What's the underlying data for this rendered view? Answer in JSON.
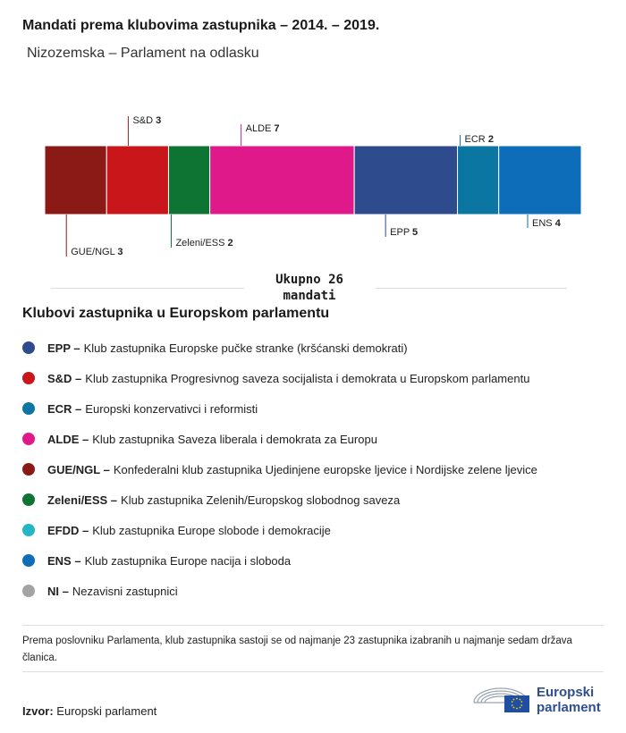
{
  "title": "Mandati prema klubovima zastupnika – 2014. – 2019.",
  "subtitle": "Nizozemska – Parlament na odlasku",
  "chart_data": {
    "type": "bar",
    "orientation": "stacked-horizontal",
    "categories": [
      "GUE/NGL",
      "S&D",
      "Zeleni/ESS",
      "ALDE",
      "EPP",
      "ECR",
      "ENS"
    ],
    "values": [
      3,
      3,
      2,
      7,
      5,
      2,
      4
    ],
    "colors": [
      "#8b1a16",
      "#c8161b",
      "#0d7434",
      "#e0198a",
      "#2e4b8e",
      "#0c76a3",
      "#0e6db9"
    ],
    "label_side": [
      "bottom",
      "top",
      "bottom",
      "top",
      "bottom",
      "top",
      "bottom"
    ],
    "total": 26
  },
  "total_label": {
    "line1": "Ukupno 26",
    "line2": "mandati"
  },
  "legend_title": "Klubovi zastupnika u Europskom parlamentu",
  "legend": [
    {
      "abbr": "EPP –",
      "text": "Klub zastupnika Europske pučke stranke (kršćanski demokrati)",
      "color": "#2e4b8e",
      "icon": "circle"
    },
    {
      "abbr": "S&D –",
      "text": "Klub zastupnika Progresivnog saveza socijalista i demokrata u Europskom parlamentu",
      "color": "#c8161b",
      "icon": "circle"
    },
    {
      "abbr": "ECR –",
      "text": "Europski konzervativci i reformisti",
      "color": "#0c76a3",
      "icon": "circle"
    },
    {
      "abbr": "ALDE –",
      "text": "Klub zastupnika Saveza liberala i demokrata za Europu",
      "color": "#e0198a",
      "icon": "circle"
    },
    {
      "abbr": "GUE/NGL –",
      "text": "Konfederalni klub zastupnika Ujedinjene europske ljevice i Nordijske zelene ljevice",
      "color": "#8b1a16",
      "icon": "circle"
    },
    {
      "abbr": "Zeleni/ESS –",
      "text": "Klub zastupnika Zelenih/Europskog slobodnog saveza",
      "color": "#0d7434",
      "icon": "circle"
    },
    {
      "abbr": "EFDD –",
      "text": "Klub zastupnika Europe slobode i demokracije",
      "color": "#25b6c4",
      "icon": "circle"
    },
    {
      "abbr": "ENS –",
      "text": "Klub zastupnika Europe nacija i sloboda",
      "color": "#0e6db9",
      "icon": "circle"
    },
    {
      "abbr": "NI –",
      "text": "Nezavisni zastupnici",
      "color": "#a3a3a3",
      "icon": "circle"
    }
  ],
  "note": "Prema poslovniku Parlamenta, klub zastupnika sastoji se od najmanje 23 zastupnika izabranih u najmanje sedam država članica.",
  "source": {
    "label": "Izvor:",
    "text": "Europski parlament"
  },
  "logo": {
    "line1": "Europski",
    "line2": "parlament",
    "icon": "european-parliament-logo-icon"
  }
}
